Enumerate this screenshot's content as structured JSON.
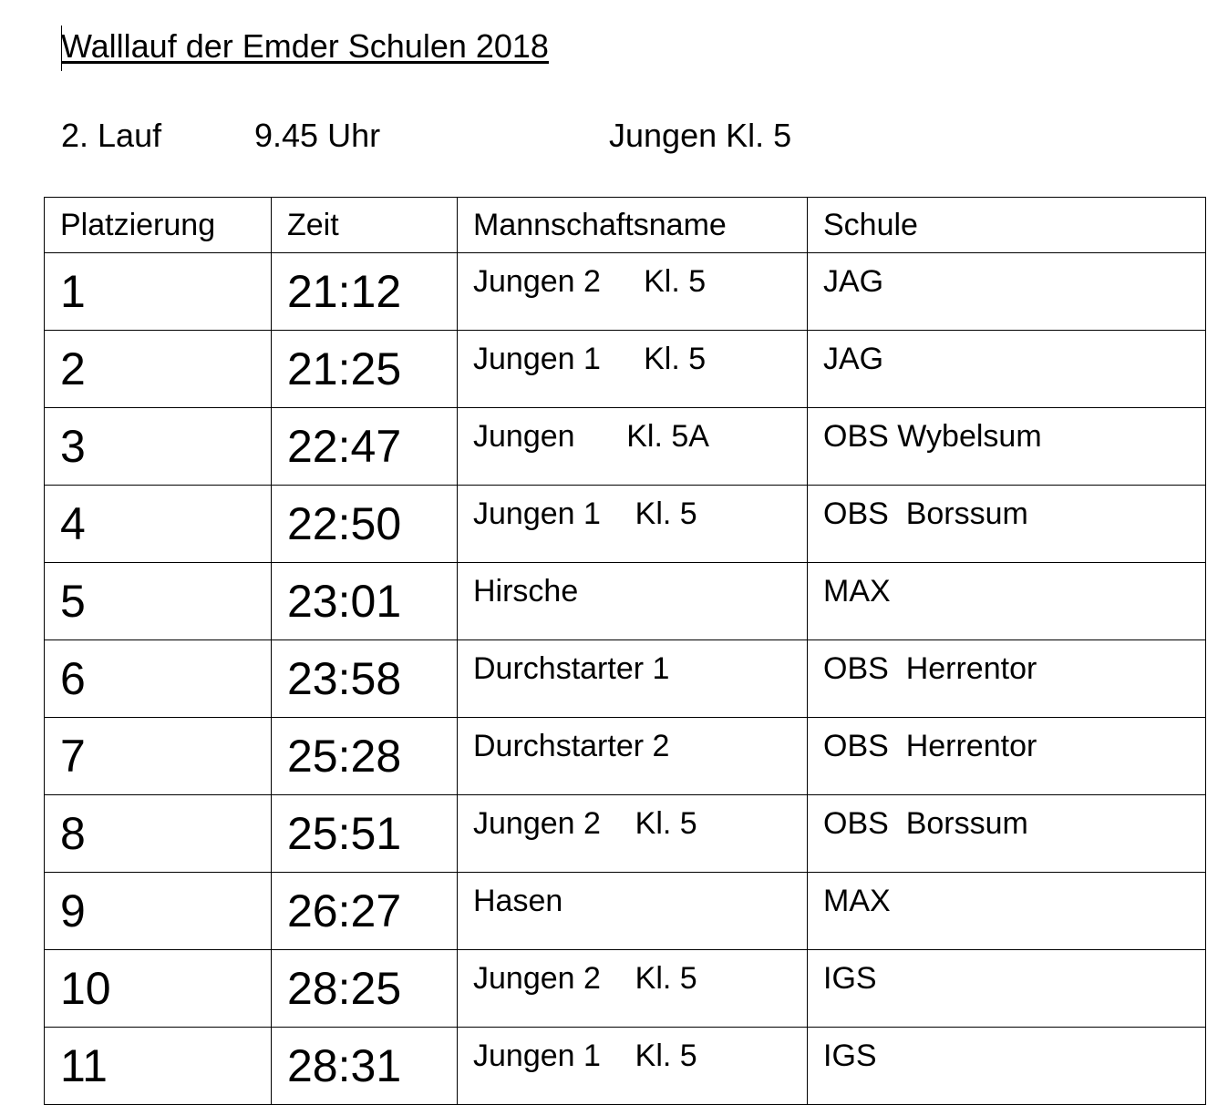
{
  "header": {
    "title": "Walllauf der Emder Schulen 2018",
    "race": "2. Lauf",
    "time": "9.45 Uhr",
    "group": "Jungen Kl. 5"
  },
  "table": {
    "columns": [
      "Platzierung",
      "Zeit",
      "Mannschaftsname",
      "Schule"
    ],
    "rows": [
      [
        "1",
        "21:12",
        "Jungen 2     Kl. 5",
        "JAG"
      ],
      [
        "2",
        "21:25",
        "Jungen 1     Kl. 5",
        "JAG"
      ],
      [
        "3",
        "22:47",
        "Jungen      Kl. 5A",
        "OBS Wybelsum"
      ],
      [
        "4",
        "22:50",
        "Jungen 1    Kl. 5",
        "OBS  Borssum"
      ],
      [
        "5",
        "23:01",
        "Hirsche",
        "MAX"
      ],
      [
        "6",
        "23:58",
        "Durchstarter 1",
        "OBS  Herrentor"
      ],
      [
        "7",
        "25:28",
        "Durchstarter 2",
        "OBS  Herrentor"
      ],
      [
        "8",
        "25:51",
        "Jungen 2    Kl. 5",
        "OBS  Borssum"
      ],
      [
        "9",
        "26:27",
        "Hasen",
        "MAX"
      ],
      [
        "10",
        "28:25",
        "Jungen 2    Kl. 5",
        "IGS"
      ],
      [
        "11",
        "28:31",
        "Jungen 1    Kl. 5",
        "IGS"
      ]
    ]
  }
}
